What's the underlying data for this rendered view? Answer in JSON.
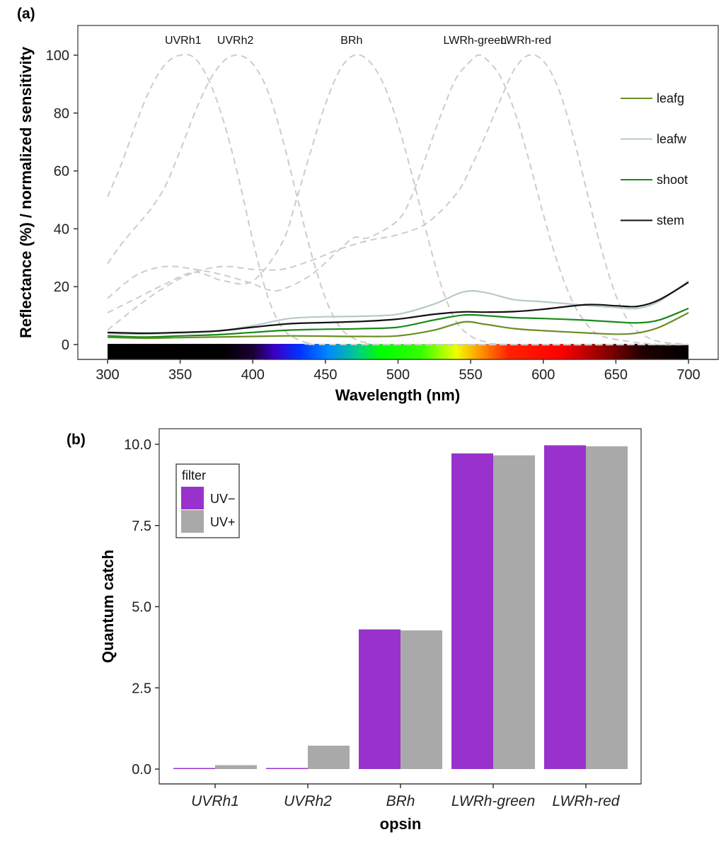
{
  "chart_data": [
    {
      "panel_label": "(a)",
      "type": "line",
      "xlabel": "Wavelength (nm)",
      "ylabel": "Reflectance (%) / normalized sensitivity",
      "xlim": [
        300,
        700
      ],
      "ylim": [
        0,
        100
      ],
      "xticks": [
        300,
        350,
        400,
        450,
        500,
        550,
        600,
        650,
        700
      ],
      "yticks": [
        0,
        20,
        40,
        60,
        80,
        100
      ],
      "grid": false,
      "spectrum_bar": true,
      "legend_position": "right",
      "sensitivity_curves": [
        {
          "name": "UVRh1",
          "peak_label_x": 352,
          "color": "#cccccc",
          "points": [
            [
              300,
              51
            ],
            [
              310,
              63
            ],
            [
              320,
              77
            ],
            [
              330,
              89
            ],
            [
              340,
              97
            ],
            [
              350,
              100
            ],
            [
              360,
              99
            ],
            [
              370,
              91
            ],
            [
              380,
              77
            ],
            [
              390,
              58
            ],
            [
              400,
              36
            ],
            [
              410,
              17
            ],
            [
              420,
              6
            ],
            [
              430,
              2
            ],
            [
              440,
              0.5
            ],
            [
              460,
              0
            ],
            [
              700,
              0
            ]
          ]
        },
        {
          "name": "UVRh2",
          "peak_label_x": 388,
          "color": "#cccccc",
          "points": [
            [
              300,
              28
            ],
            [
              310,
              35
            ],
            [
              320,
              41
            ],
            [
              330,
              47
            ],
            [
              340,
              55
            ],
            [
              350,
              67
            ],
            [
              360,
              80
            ],
            [
              370,
              91
            ],
            [
              380,
              98
            ],
            [
              390,
              100
            ],
            [
              400,
              97
            ],
            [
              410,
              88
            ],
            [
              420,
              72
            ],
            [
              430,
              52
            ],
            [
              440,
              32
            ],
            [
              450,
              16
            ],
            [
              460,
              6
            ],
            [
              470,
              2
            ],
            [
              480,
              0.5
            ],
            [
              500,
              0
            ],
            [
              700,
              0
            ]
          ]
        },
        {
          "name": "BRh",
          "peak_label_x": 468,
          "color": "#cccccc",
          "points": [
            [
              300,
              11
            ],
            [
              320,
              16
            ],
            [
              340,
              21
            ],
            [
              360,
              25
            ],
            [
              380,
              22
            ],
            [
              400,
              22
            ],
            [
              420,
              35
            ],
            [
              430,
              50
            ],
            [
              440,
              67
            ],
            [
              450,
              83
            ],
            [
              460,
              95
            ],
            [
              470,
              100
            ],
            [
              480,
              98
            ],
            [
              490,
              90
            ],
            [
              500,
              76
            ],
            [
              510,
              58
            ],
            [
              520,
              38
            ],
            [
              530,
              20
            ],
            [
              540,
              8
            ],
            [
              550,
              3
            ],
            [
              560,
              1
            ],
            [
              580,
              0
            ],
            [
              700,
              0
            ]
          ]
        },
        {
          "name": "LWRh-green",
          "peak_label_x": 553,
          "color": "#cccccc",
          "points": [
            [
              300,
              16
            ],
            [
              320,
              24
            ],
            [
              340,
              27
            ],
            [
              360,
              26
            ],
            [
              380,
              24
            ],
            [
              400,
              21
            ],
            [
              410,
              19
            ],
            [
              420,
              19
            ],
            [
              440,
              24
            ],
            [
              460,
              33
            ],
            [
              470,
              37
            ],
            [
              480,
              37
            ],
            [
              500,
              43
            ],
            [
              510,
              52
            ],
            [
              520,
              66
            ],
            [
              530,
              80
            ],
            [
              540,
              92
            ],
            [
              550,
              98
            ],
            [
              555,
              100
            ],
            [
              560,
              99
            ],
            [
              570,
              93
            ],
            [
              580,
              81
            ],
            [
              590,
              64
            ],
            [
              600,
              45
            ],
            [
              610,
              28
            ],
            [
              620,
              15
            ],
            [
              630,
              7
            ],
            [
              640,
              3
            ],
            [
              660,
              1
            ],
            [
              680,
              0
            ],
            [
              700,
              0
            ]
          ]
        },
        {
          "name": "LWRh-red",
          "peak_label_x": 588,
          "color": "#cccccc",
          "points": [
            [
              300,
              5
            ],
            [
              320,
              13
            ],
            [
              340,
              20
            ],
            [
              360,
              25
            ],
            [
              380,
              27
            ],
            [
              400,
              26
            ],
            [
              420,
              26
            ],
            [
              440,
              29
            ],
            [
              460,
              33
            ],
            [
              480,
              36
            ],
            [
              500,
              38
            ],
            [
              520,
              42
            ],
            [
              540,
              52
            ],
            [
              550,
              61
            ],
            [
              560,
              72
            ],
            [
              570,
              84
            ],
            [
              580,
              95
            ],
            [
              590,
              100
            ],
            [
              600,
              98
            ],
            [
              610,
              89
            ],
            [
              620,
              73
            ],
            [
              630,
              53
            ],
            [
              640,
              33
            ],
            [
              650,
              17
            ],
            [
              660,
              7
            ],
            [
              670,
              3
            ],
            [
              680,
              1
            ],
            [
              700,
              0
            ]
          ]
        }
      ],
      "series": [
        {
          "name": "leafg",
          "color": "#6b8e23",
          "points": [
            [
              300,
              2.5
            ],
            [
              325,
              2.2
            ],
            [
              350,
              2.4
            ],
            [
              375,
              2.6
            ],
            [
              400,
              2.8
            ],
            [
              425,
              3.0
            ],
            [
              450,
              2.9
            ],
            [
              475,
              2.8
            ],
            [
              500,
              3.0
            ],
            [
              525,
              5.0
            ],
            [
              545,
              7.8
            ],
            [
              560,
              7.0
            ],
            [
              580,
              5.5
            ],
            [
              600,
              4.8
            ],
            [
              630,
              4.0
            ],
            [
              650,
              3.6
            ],
            [
              665,
              4.0
            ],
            [
              680,
              6.0
            ],
            [
              700,
              11.0
            ]
          ]
        },
        {
          "name": "leafw",
          "color": "#b8c8c8",
          "points": [
            [
              300,
              3.8
            ],
            [
              325,
              3.6
            ],
            [
              350,
              4.0
            ],
            [
              375,
              4.6
            ],
            [
              400,
              6.5
            ],
            [
              425,
              9.0
            ],
            [
              450,
              9.6
            ],
            [
              475,
              9.8
            ],
            [
              500,
              10.5
            ],
            [
              525,
              14.0
            ],
            [
              545,
              18.2
            ],
            [
              560,
              18.0
            ],
            [
              580,
              15.5
            ],
            [
              600,
              14.8
            ],
            [
              630,
              13.5
            ],
            [
              650,
              12.8
            ],
            [
              665,
              12.5
            ],
            [
              680,
              15.0
            ],
            [
              700,
              22.0
            ]
          ]
        },
        {
          "name": "shoot",
          "color": "#1a8a1a",
          "points": [
            [
              300,
              3.0
            ],
            [
              325,
              2.6
            ],
            [
              350,
              3.0
            ],
            [
              375,
              3.4
            ],
            [
              400,
              4.2
            ],
            [
              425,
              5.0
            ],
            [
              450,
              5.3
            ],
            [
              475,
              5.5
            ],
            [
              500,
              6.0
            ],
            [
              525,
              8.5
            ],
            [
              545,
              10.2
            ],
            [
              560,
              10.0
            ],
            [
              580,
              9.3
            ],
            [
              600,
              9.0
            ],
            [
              630,
              8.4
            ],
            [
              650,
              7.8
            ],
            [
              665,
              7.5
            ],
            [
              680,
              8.5
            ],
            [
              700,
              12.5
            ]
          ]
        },
        {
          "name": "stem",
          "color": "#111111",
          "points": [
            [
              300,
              4.2
            ],
            [
              325,
              3.9
            ],
            [
              350,
              4.2
            ],
            [
              375,
              4.7
            ],
            [
              400,
              6.0
            ],
            [
              425,
              7.2
            ],
            [
              450,
              7.6
            ],
            [
              475,
              8.0
            ],
            [
              500,
              8.8
            ],
            [
              525,
              10.5
            ],
            [
              545,
              11.3
            ],
            [
              560,
              11.2
            ],
            [
              580,
              11.4
            ],
            [
              600,
              12.2
            ],
            [
              630,
              13.8
            ],
            [
              650,
              13.4
            ],
            [
              665,
              13.2
            ],
            [
              680,
              15.5
            ],
            [
              700,
              21.5
            ]
          ]
        }
      ]
    },
    {
      "panel_label": "(b)",
      "type": "bar",
      "xlabel": "opsin",
      "ylabel": "Quantum catch",
      "ylim": [
        -0.3,
        10.5
      ],
      "yticks": [
        "0.0",
        "2.5",
        "5.0",
        "7.5",
        "10.0"
      ],
      "categories": [
        "UVRh1",
        "UVRh2",
        "BRh",
        "LWRh-green",
        "LWRh-red"
      ],
      "legend_title": "filter",
      "legend_position": "top-left",
      "series": [
        {
          "name": "UV−",
          "color": "#9932cc",
          "values": [
            0.02,
            0.02,
            4.3,
            9.72,
            9.97
          ]
        },
        {
          "name": "UV+",
          "color": "#a9a9a9",
          "values": [
            0.12,
            0.72,
            4.27,
            9.66,
            9.94
          ]
        }
      ]
    }
  ]
}
